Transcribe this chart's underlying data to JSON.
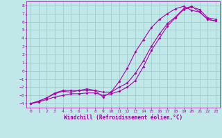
{
  "title": "",
  "xlabel": "Windchill (Refroidissement éolien,°C)",
  "ylabel": "",
  "xlim": [
    -0.5,
    23.5
  ],
  "ylim": [
    -4.5,
    8.5
  ],
  "xticks": [
    0,
    1,
    2,
    3,
    4,
    5,
    6,
    7,
    8,
    9,
    10,
    11,
    12,
    13,
    14,
    15,
    16,
    17,
    18,
    19,
    20,
    21,
    22,
    23
  ],
  "yticks": [
    -4,
    -3,
    -2,
    -1,
    0,
    1,
    2,
    3,
    4,
    5,
    6,
    7,
    8
  ],
  "bg_color": "#c0e8e8",
  "grid_color": "#a0cccc",
  "line_color": "#aa00aa",
  "line1_x": [
    0,
    1,
    2,
    3,
    4,
    5,
    6,
    7,
    8,
    9,
    10,
    11,
    12,
    13,
    14,
    15,
    16,
    17,
    18,
    19,
    20,
    21,
    22,
    23
  ],
  "line1_y": [
    -4,
    -3.8,
    -3.5,
    -3.2,
    -3.0,
    -2.8,
    -2.8,
    -2.7,
    -2.7,
    -3.0,
    -2.8,
    -2.5,
    -2.0,
    -1.2,
    0.5,
    2.5,
    4.0,
    5.5,
    6.5,
    7.5,
    7.8,
    7.5,
    6.5,
    6.3
  ],
  "line2_x": [
    0,
    1,
    2,
    3,
    4,
    5,
    6,
    7,
    8,
    9,
    10,
    11,
    12,
    13,
    14,
    15,
    16,
    17,
    18,
    19,
    20,
    21,
    22,
    23
  ],
  "line2_y": [
    -4,
    -3.7,
    -3.3,
    -2.8,
    -2.5,
    -2.6,
    -2.4,
    -2.2,
    -2.4,
    -3.2,
    -2.6,
    -1.3,
    0.3,
    2.3,
    3.8,
    5.3,
    6.3,
    7.0,
    7.6,
    7.9,
    7.4,
    7.2,
    6.3,
    6.1
  ],
  "line3_x": [
    0,
    1,
    2,
    3,
    4,
    5,
    6,
    7,
    8,
    9,
    10,
    11,
    12,
    13,
    14,
    15,
    16,
    17,
    18,
    19,
    20,
    21,
    22,
    23
  ],
  "line3_y": [
    -4,
    -3.7,
    -3.3,
    -2.7,
    -2.4,
    -2.4,
    -2.4,
    -2.4,
    -2.4,
    -2.6,
    -2.6,
    -2.0,
    -1.5,
    -0.3,
    1.2,
    3.0,
    4.5,
    5.8,
    6.6,
    7.6,
    7.9,
    7.2,
    6.3,
    6.1
  ],
  "font_color": "#990099",
  "tick_fontsize": 4.5,
  "label_fontsize": 5.5,
  "marker_size": 2.0,
  "line_width": 0.8
}
